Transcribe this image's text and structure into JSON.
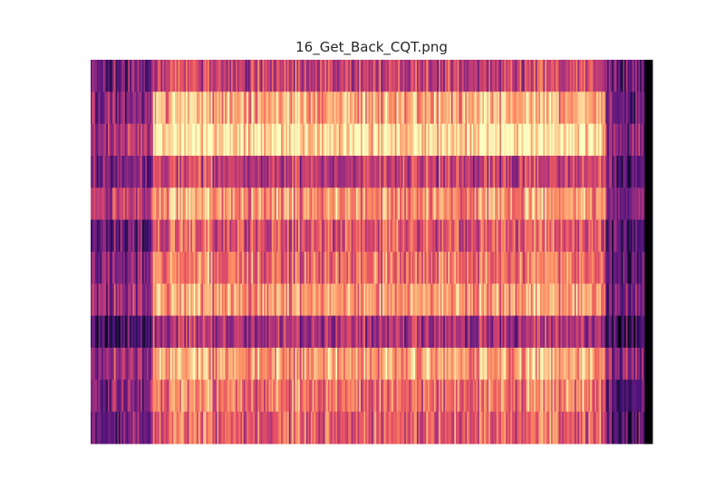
{
  "figure": {
    "title": "16_Get_Back_CQT.png"
  },
  "chart_data": {
    "type": "heatmap",
    "title": "16_Get_Back_CQT.png",
    "xlabel": "",
    "ylabel": "",
    "colormap": "magma",
    "axes_visible": false,
    "grid": false,
    "rows": 12,
    "columns": 360,
    "value_range": [
      0,
      1
    ],
    "silence_tail_color": "#000004",
    "row_profiles": [
      {
        "row": 1,
        "intro": 0.35,
        "body": 0.55,
        "outro": 0.3
      },
      {
        "row": 2,
        "intro": 0.42,
        "body": 0.83,
        "outro": 0.3
      },
      {
        "row": 3,
        "intro": 0.5,
        "body": 0.95,
        "outro": 0.4
      },
      {
        "row": 4,
        "intro": 0.38,
        "body": 0.55,
        "outro": 0.28
      },
      {
        "row": 5,
        "intro": 0.55,
        "body": 0.78,
        "outro": 0.38
      },
      {
        "row": 6,
        "intro": 0.33,
        "body": 0.62,
        "outro": 0.28
      },
      {
        "row": 7,
        "intro": 0.4,
        "body": 0.7,
        "outro": 0.32
      },
      {
        "row": 8,
        "intro": 0.45,
        "body": 0.8,
        "outro": 0.35
      },
      {
        "row": 9,
        "intro": 0.22,
        "body": 0.48,
        "outro": 0.2
      },
      {
        "row": 10,
        "intro": 0.48,
        "body": 0.8,
        "outro": 0.4
      },
      {
        "row": 11,
        "intro": 0.4,
        "body": 0.7,
        "outro": 0.3
      },
      {
        "row": 12,
        "intro": 0.35,
        "body": 0.65,
        "outro": 0.3
      }
    ],
    "segments": {
      "intro_end_fraction": 0.11,
      "outro_start_fraction": 0.915,
      "silence_start_fraction": 0.985
    }
  }
}
